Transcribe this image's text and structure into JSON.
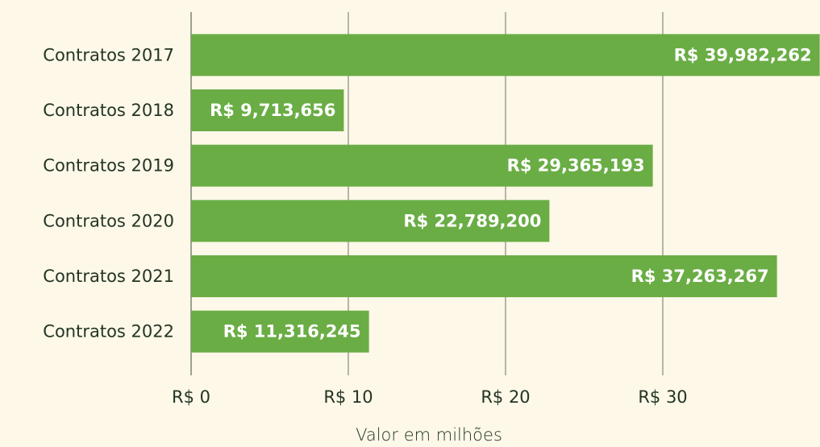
{
  "chart_data": {
    "type": "barh",
    "xlabel": "Valor em milhões",
    "categories": [
      "Contratos 2017",
      "Contratos 2018",
      "Contratos 2019",
      "Contratos 2020",
      "Contratos 2021",
      "Contratos 2022"
    ],
    "values": [
      39.982262,
      9.713656,
      29.365193,
      22.7892,
      37.263267,
      11.316245
    ],
    "value_labels": [
      "R$ 39,982,262",
      "R$ 9,713,656",
      "R$ 29,365,193",
      "R$ 22,789,200",
      "R$ 37,263,267",
      "R$ 11,316,245"
    ],
    "color": "#6aad45",
    "xlim": [
      0,
      40
    ],
    "xticks": [
      {
        "value": 0,
        "label": "R$ 0"
      },
      {
        "value": 10,
        "label": "R$ 10"
      },
      {
        "value": 20,
        "label": "R$ 20"
      },
      {
        "value": 30,
        "label": "R$ 30"
      }
    ],
    "grid": true
  }
}
